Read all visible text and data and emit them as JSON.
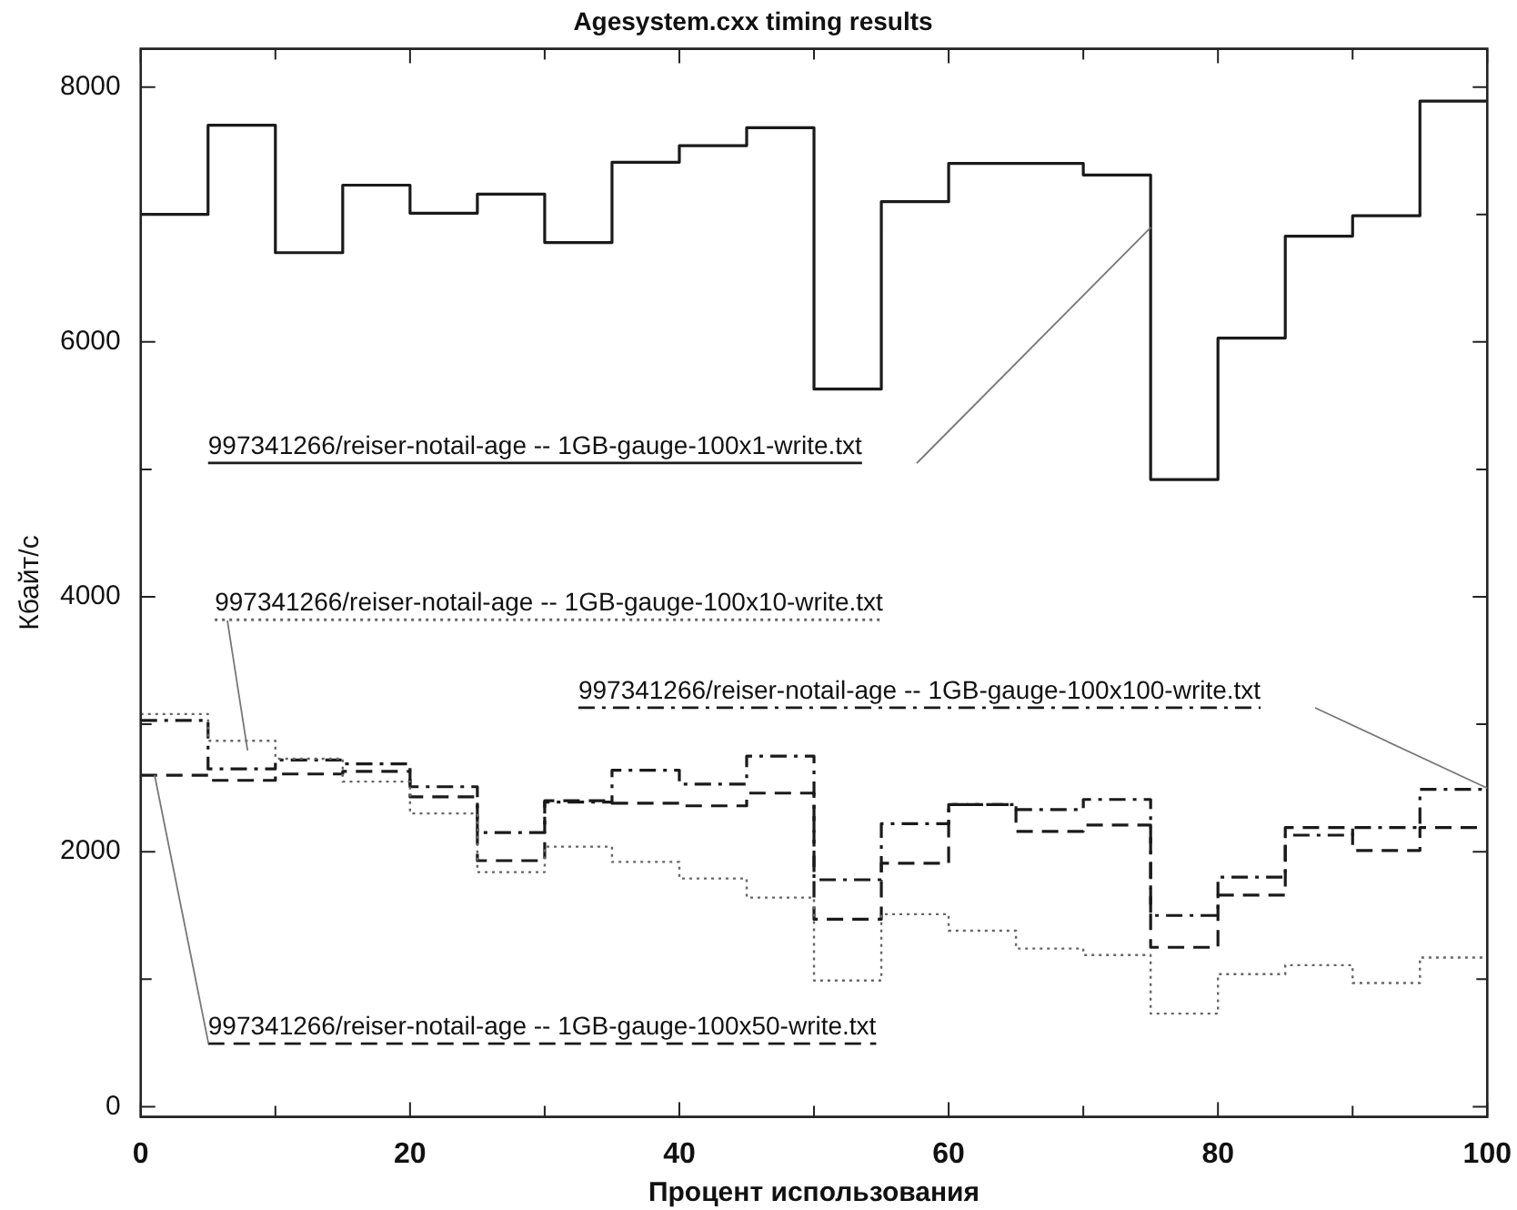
{
  "chart_data": {
    "type": "step",
    "title": "Agesystem.cxx timing results",
    "xlabel": "Процент использования",
    "ylabel": "Кбайт/с",
    "x": [
      0,
      5,
      10,
      15,
      20,
      25,
      30,
      35,
      40,
      45,
      50,
      55,
      60,
      65,
      70,
      75,
      80,
      85,
      90,
      95,
      100
    ],
    "series": [
      {
        "name": "997341266/reiser-notail-age -- 1GB-gauge-100x1-write.txt",
        "color": "#1a1a1a",
        "line_style": "solid",
        "values": [
          7000,
          7700,
          6700,
          7230,
          7010,
          7160,
          6780,
          7410,
          7540,
          7680,
          5630,
          7100,
          7400,
          7400,
          7310,
          4920,
          6030,
          6830,
          6990,
          7890,
          7890
        ]
      },
      {
        "name": "997341266/reiser-notail-age -- 1GB-gauge-100x10-write.txt",
        "color": "#666666",
        "line_style": "dotted",
        "values": [
          3080,
          2870,
          2730,
          2550,
          2300,
          1840,
          2040,
          1920,
          1790,
          1640,
          990,
          1510,
          1380,
          1240,
          1190,
          730,
          1040,
          1110,
          970,
          1170,
          1170
        ]
      },
      {
        "name": "997341266/reiser-notail-age -- 1GB-gauge-100x50-write.txt",
        "color": "#1a1a1a",
        "line_style": "dashed",
        "values": [
          2600,
          2560,
          2610,
          2630,
          2430,
          1930,
          2400,
          2380,
          2360,
          2460,
          1470,
          1910,
          2370,
          2160,
          2210,
          1250,
          1660,
          2190,
          2010,
          2190,
          2190
        ]
      },
      {
        "name": "997341266/reiser-notail-age -- 1GB-gauge-100x100-write.txt",
        "color": "#1a1a1a",
        "line_style": "dashdot",
        "values": [
          3030,
          2650,
          2720,
          2690,
          2510,
          2150,
          2390,
          2640,
          2530,
          2750,
          1780,
          2220,
          2370,
          2330,
          2410,
          1500,
          1800,
          2130,
          2190,
          2490,
          2490
        ]
      }
    ],
    "xlim": [
      0,
      100
    ],
    "ylim": [
      -80,
      8300
    ],
    "xticks": [
      0,
      {
        "value": 10,
        "label": null
      },
      20,
      {
        "value": 30,
        "label": null
      },
      40,
      {
        "value": 50,
        "label": null
      },
      60,
      {
        "value": 70,
        "label": null
      },
      80,
      {
        "value": 90,
        "label": null
      },
      100
    ],
    "yticks": [
      0,
      {
        "value": 1000,
        "label": null
      },
      2000,
      {
        "value": 3000,
        "label": null
      },
      4000,
      {
        "value": 5000,
        "label": null
      },
      6000,
      {
        "value": 7000,
        "label": null
      },
      8000
    ],
    "grid": false,
    "legend": false
  }
}
